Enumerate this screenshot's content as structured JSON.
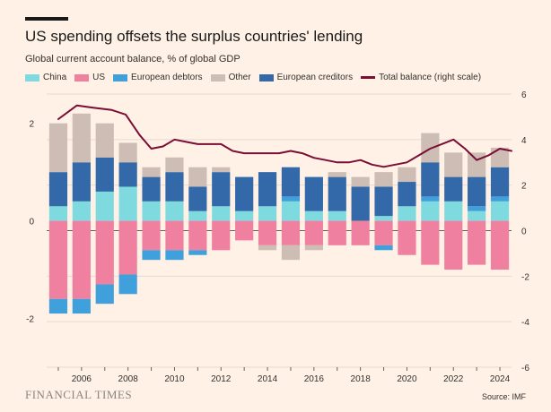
{
  "title": "US spending offsets the surplus countries' lending",
  "subtitle": "Global current account balance, % of global GDP",
  "legend": [
    {
      "label": "China",
      "color": "#7FDAE0",
      "kind": "bar"
    },
    {
      "label": "US",
      "color": "#F080A0",
      "kind": "bar"
    },
    {
      "label": "European debtors",
      "color": "#3FA0DC",
      "kind": "bar"
    },
    {
      "label": "Other",
      "color": "#CDBDB4",
      "kind": "bar"
    },
    {
      "label": "European creditors",
      "color": "#3369A8",
      "kind": "bar"
    },
    {
      "label": "Total balance (right scale)",
      "color": "#7A0E34",
      "kind": "line"
    }
  ],
  "brand": "FINANCIAL TIMES",
  "source": "Source: IMF",
  "chart_data": {
    "type": "bar",
    "stacked": true,
    "x": [
      2005,
      2006,
      2007,
      2008,
      2009,
      2010,
      2011,
      2012,
      2013,
      2014,
      2015,
      2016,
      2017,
      2018,
      2019,
      2020,
      2021,
      2022,
      2023,
      2024
    ],
    "x_ticks": [
      "2006",
      "2008",
      "2010",
      "2012",
      "2014",
      "2016",
      "2018",
      "2020",
      "2022",
      "2024"
    ],
    "ylim": [
      -3,
      2.6
    ],
    "y_ticks": [
      "-2",
      "0",
      "2"
    ],
    "y2lim": [
      -6,
      6
    ],
    "y2_ticks": [
      "-6",
      "-4",
      "-2",
      "0",
      "2",
      "4",
      "6"
    ],
    "grid": true,
    "positive_series": [
      {
        "name": "China",
        "color": "#7FDAE0",
        "values": [
          0.3,
          0.4,
          0.6,
          0.7,
          0.4,
          0.4,
          0.2,
          0.3,
          0.2,
          0.3,
          0.4,
          0.2,
          0.2,
          0.0,
          0.1,
          0.3,
          0.4,
          0.4,
          0.2,
          0.4
        ]
      },
      {
        "name": "European debtors",
        "color": "#3FA0DC",
        "values": [
          0,
          0,
          0,
          0,
          0,
          0,
          0,
          0,
          0,
          0,
          0.1,
          0,
          0,
          0,
          0,
          0,
          0.1,
          0,
          0.1,
          0.1
        ]
      },
      {
        "name": "European creditors",
        "color": "#3369A8",
        "values": [
          0.7,
          0.8,
          0.7,
          0.5,
          0.5,
          0.6,
          0.5,
          0.7,
          0.7,
          0.7,
          0.6,
          0.7,
          0.7,
          0.7,
          0.6,
          0.5,
          0.7,
          0.5,
          0.6,
          0.6
        ]
      },
      {
        "name": "Other",
        "color": "#CDBDB4",
        "values": [
          1.0,
          1.0,
          0.7,
          0.4,
          0.2,
          0.3,
          0.4,
          0.1,
          0.0,
          0.0,
          0.0,
          0.0,
          0.1,
          0.2,
          0.3,
          0.3,
          0.6,
          0.5,
          0.5,
          0.4
        ]
      }
    ],
    "negative_series": [
      {
        "name": "US",
        "color": "#F080A0",
        "values": [
          -1.6,
          -1.6,
          -1.3,
          -1.1,
          -0.6,
          -0.6,
          -0.6,
          -0.6,
          -0.4,
          -0.5,
          -0.5,
          -0.5,
          -0.5,
          -0.5,
          -0.5,
          -0.7,
          -0.9,
          -1.0,
          -0.9,
          -1.0
        ]
      },
      {
        "name": "European debtors",
        "color": "#3FA0DC",
        "values": [
          -0.3,
          -0.3,
          -0.4,
          -0.4,
          -0.2,
          -0.2,
          -0.1,
          0,
          0,
          0,
          0,
          0,
          0,
          0,
          -0.1,
          0,
          0,
          0,
          0,
          0
        ]
      },
      {
        "name": "Other",
        "color": "#CDBDB4",
        "values": [
          0,
          0,
          0,
          0,
          0,
          0,
          0,
          0,
          0,
          -0.1,
          -0.3,
          -0.1,
          0,
          0,
          0,
          0,
          0,
          0,
          0,
          0
        ]
      }
    ],
    "line_series": {
      "name": "Total balance (right scale)",
      "color": "#7A0E34",
      "x": [
        2005,
        2005.8,
        2006.5,
        2007.3,
        2007.9,
        2008.5,
        2009,
        2009.5,
        2010,
        2010.5,
        2011,
        2011.5,
        2012,
        2012.5,
        2013,
        2013.5,
        2014,
        2014.5,
        2015,
        2015.5,
        2016,
        2016.5,
        2017,
        2017.5,
        2018,
        2018.5,
        2019,
        2019.5,
        2020,
        2020.5,
        2021,
        2021.5,
        2022,
        2022.5,
        2023,
        2023.5,
        2024,
        2024.5
      ],
      "values": [
        4.9,
        5.5,
        5.4,
        5.3,
        5.1,
        4.2,
        3.6,
        3.7,
        4.0,
        3.9,
        3.8,
        3.8,
        3.8,
        3.5,
        3.4,
        3.4,
        3.4,
        3.4,
        3.5,
        3.4,
        3.2,
        3.1,
        3.0,
        3.0,
        3.1,
        2.9,
        2.8,
        2.9,
        3.0,
        3.3,
        3.6,
        3.8,
        4.0,
        3.6,
        3.1,
        3.3,
        3.6,
        3.5
      ]
    }
  }
}
